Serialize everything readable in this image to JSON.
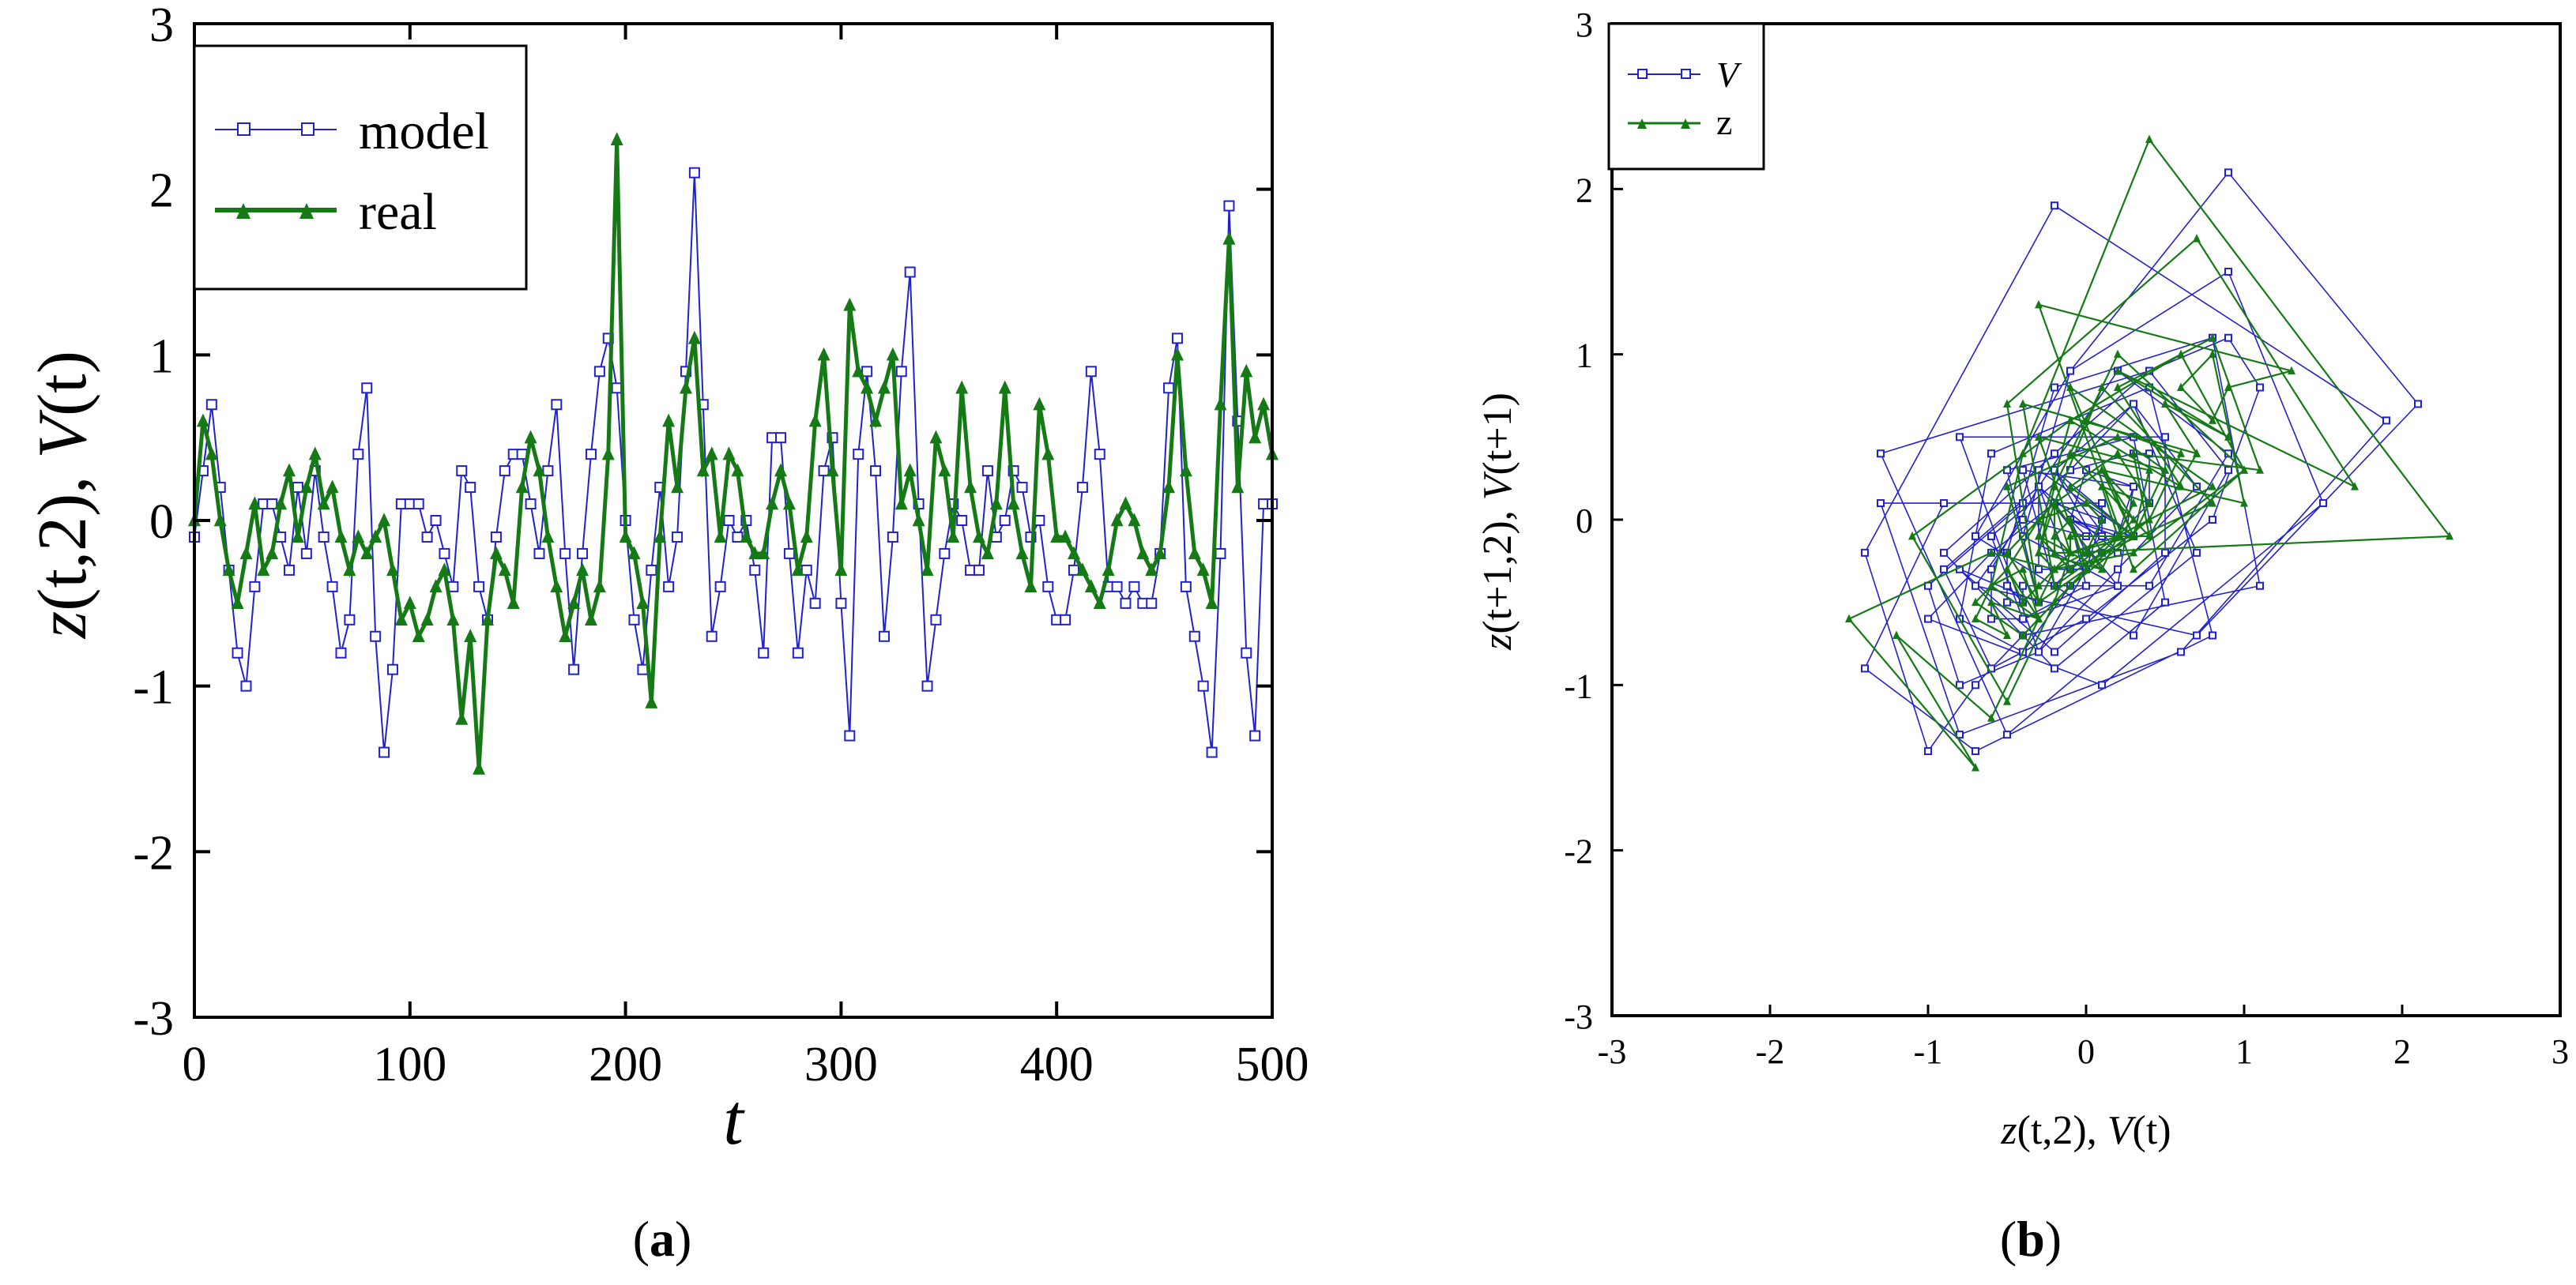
{
  "colors": {
    "model": "#2222cc",
    "real": "#157a15",
    "axis": "#000000"
  },
  "captions": {
    "a_open": "(",
    "a_letter": "a",
    "a_close": ")",
    "b_open": "(",
    "b_letter": "b",
    "b_close": ")"
  },
  "chart_data": [
    {
      "id": "a",
      "type": "line",
      "title": "",
      "ylabel": "z(t,2), V(t)",
      "ylabel_parts": {
        "z": "z",
        "zargs": "(t,2), ",
        "v": "V",
        "vargs": "(t)"
      },
      "xlabel": "t",
      "xlim": [
        0,
        500
      ],
      "ylim": [
        -3,
        3
      ],
      "xticks": [
        0,
        100,
        200,
        300,
        400,
        500
      ],
      "xtick_labels": [
        "0",
        "100",
        "200",
        "300",
        "400",
        "500"
      ],
      "yticks": [
        -3,
        -2,
        -1,
        0,
        1,
        2,
        3
      ],
      "ytick_labels": [
        "-3",
        "-2",
        "-1",
        "0",
        "1",
        "2",
        "3"
      ],
      "legend": {
        "position": "top-left",
        "entries": [
          "model",
          "real"
        ]
      },
      "series": [
        {
          "name": "model",
          "marker": "square",
          "x": [
            0,
            4,
            8,
            12,
            16,
            20,
            24,
            28,
            32,
            36,
            40,
            44,
            48,
            52,
            56,
            60,
            64,
            68,
            72,
            76,
            80,
            84,
            88,
            92,
            96,
            100,
            104,
            108,
            112,
            116,
            120,
            124,
            128,
            132,
            136,
            140,
            144,
            148,
            152,
            156,
            160,
            164,
            168,
            172,
            176,
            180,
            184,
            188,
            192,
            196,
            200,
            204,
            208,
            212,
            216,
            220,
            224,
            228,
            232,
            236,
            240,
            244,
            248,
            252,
            256,
            260,
            264,
            268,
            272,
            276,
            280,
            284,
            288,
            292,
            296,
            300,
            304,
            308,
            312,
            316,
            320,
            324,
            328,
            332,
            336,
            340,
            344,
            348,
            352,
            356,
            360,
            364,
            368,
            372,
            376,
            380,
            384,
            388,
            392,
            396,
            400,
            404,
            408,
            412,
            416,
            420,
            424,
            428,
            432,
            436,
            440,
            444,
            448,
            452,
            456,
            460,
            464,
            468,
            472,
            476,
            480,
            484,
            488,
            492,
            496,
            500
          ],
          "y": [
            -0.1,
            0.3,
            0.7,
            0.2,
            -0.3,
            -0.8,
            -1.0,
            -0.4,
            0.1,
            0.1,
            -0.1,
            -0.3,
            0.2,
            -0.2,
            0.3,
            -0.1,
            -0.4,
            -0.8,
            -0.6,
            0.4,
            0.8,
            -0.7,
            -1.4,
            -0.9,
            0.1,
            0.1,
            0.1,
            -0.1,
            0.0,
            -0.2,
            -0.4,
            0.3,
            0.2,
            -0.4,
            -0.6,
            -0.1,
            0.3,
            0.4,
            0.4,
            0.1,
            -0.2,
            0.3,
            0.7,
            -0.2,
            -0.9,
            -0.2,
            0.4,
            0.9,
            1.1,
            0.8,
            0.0,
            -0.6,
            -0.9,
            -0.3,
            0.2,
            -0.4,
            -0.1,
            0.9,
            2.1,
            0.7,
            -0.7,
            -0.4,
            0.0,
            -0.1,
            0.0,
            -0.3,
            -0.8,
            0.5,
            0.5,
            -0.2,
            -0.8,
            -0.3,
            -0.5,
            0.3,
            0.5,
            -0.5,
            -1.3,
            0.4,
            0.9,
            0.3,
            -0.7,
            -0.1,
            0.9,
            1.5,
            0.1,
            -1.0,
            -0.6,
            -0.2,
            0.1,
            0.0,
            -0.3,
            -0.3,
            0.3,
            -0.1,
            0.0,
            0.3,
            0.2,
            -0.1,
            0.0,
            -0.4,
            -0.6,
            -0.6,
            -0.3,
            0.2,
            0.9,
            0.4,
            -0.4,
            -0.4,
            -0.5,
            -0.4,
            -0.5,
            -0.5,
            -0.2,
            0.8,
            1.1,
            -0.4,
            -0.7,
            -1.0,
            -1.4,
            -0.2,
            1.9,
            0.6,
            -0.8,
            -1.3,
            0.1,
            0.1
          ]
        },
        {
          "name": "real",
          "marker": "triangle",
          "x": [
            0,
            4,
            8,
            12,
            16,
            20,
            24,
            28,
            32,
            36,
            40,
            44,
            48,
            52,
            56,
            60,
            64,
            68,
            72,
            76,
            80,
            84,
            88,
            92,
            96,
            100,
            104,
            108,
            112,
            116,
            120,
            124,
            128,
            132,
            136,
            140,
            144,
            148,
            152,
            156,
            160,
            164,
            168,
            172,
            176,
            180,
            184,
            188,
            192,
            196,
            200,
            204,
            208,
            212,
            216,
            220,
            224,
            228,
            232,
            236,
            240,
            244,
            248,
            252,
            256,
            260,
            264,
            268,
            272,
            276,
            280,
            284,
            288,
            292,
            296,
            300,
            304,
            308,
            312,
            316,
            320,
            324,
            328,
            332,
            336,
            340,
            344,
            348,
            352,
            356,
            360,
            364,
            368,
            372,
            376,
            380,
            384,
            388,
            392,
            396,
            400,
            404,
            408,
            412,
            416,
            420,
            424,
            428,
            432,
            436,
            440,
            444,
            448,
            452,
            456,
            460,
            464,
            468,
            472,
            476,
            480,
            484,
            488,
            492,
            496,
            500
          ],
          "y": [
            0.0,
            0.6,
            0.4,
            0.0,
            -0.3,
            -0.5,
            -0.2,
            0.1,
            -0.3,
            -0.2,
            0.1,
            0.3,
            -0.1,
            0.2,
            0.4,
            0.1,
            0.2,
            -0.1,
            -0.3,
            -0.1,
            -0.2,
            -0.1,
            0.0,
            -0.3,
            -0.6,
            -0.5,
            -0.7,
            -0.6,
            -0.4,
            -0.3,
            -0.6,
            -1.2,
            -0.7,
            -1.5,
            -0.6,
            -0.2,
            -0.3,
            -0.5,
            0.2,
            0.5,
            0.3,
            -0.1,
            -0.4,
            -0.7,
            -0.5,
            -0.3,
            -0.6,
            -0.4,
            0.4,
            2.3,
            -0.1,
            -0.2,
            -0.5,
            -1.1,
            -0.1,
            0.6,
            0.2,
            0.8,
            1.1,
            0.3,
            0.4,
            -0.1,
            0.4,
            0.3,
            -0.1,
            -0.2,
            -0.2,
            0.1,
            0.3,
            0.1,
            -0.3,
            -0.1,
            0.6,
            1.0,
            0.3,
            -0.3,
            1.3,
            0.9,
            0.8,
            0.6,
            0.8,
            1.0,
            0.1,
            0.3,
            0.0,
            -0.3,
            0.5,
            0.3,
            -0.1,
            0.8,
            0.2,
            -0.1,
            -0.2,
            0.1,
            0.8,
            0.1,
            -0.2,
            -0.4,
            0.7,
            0.4,
            -0.1,
            -0.1,
            -0.2,
            -0.3,
            -0.4,
            -0.5,
            -0.3,
            0.0,
            0.1,
            0.0,
            -0.2,
            -0.3,
            -0.2,
            0.2,
            1.0,
            0.3,
            -0.2,
            -0.3,
            -0.5,
            0.7,
            1.7,
            0.2,
            0.9,
            0.5,
            0.7,
            0.4
          ]
        }
      ]
    },
    {
      "id": "b",
      "type": "scatter",
      "title": "",
      "xlabel": "z(t,2), V(t)",
      "xlabel_parts": {
        "z": "z",
        "zargs": "(t,2), ",
        "v": "V",
        "vargs": "(t)"
      },
      "ylabel": "z(t+1,2), V(t+1)",
      "ylabel_parts": {
        "z": "z",
        "zargs": "(t+1,2), ",
        "v": "V",
        "vargs": "(t+1)"
      },
      "xlim": [
        -3,
        3
      ],
      "ylim": [
        -3,
        3
      ],
      "xticks": [
        -3,
        -2,
        -1,
        0,
        1,
        2,
        3
      ],
      "xtick_labels": [
        "-3",
        "-2",
        "-1",
        "0",
        "1",
        "2",
        "3"
      ],
      "yticks": [
        -3,
        -2,
        -1,
        0,
        1,
        2,
        3
      ],
      "ytick_labels": [
        "-3",
        "-2",
        "-1",
        "0",
        "1",
        "2",
        "3"
      ],
      "legend": {
        "position": "top-left",
        "entries": [
          "V",
          "z"
        ]
      },
      "note": "Phase portraits: consecutive pairs of the panel (a) series (value at t vs value at t+1), connected by lines."
    }
  ]
}
